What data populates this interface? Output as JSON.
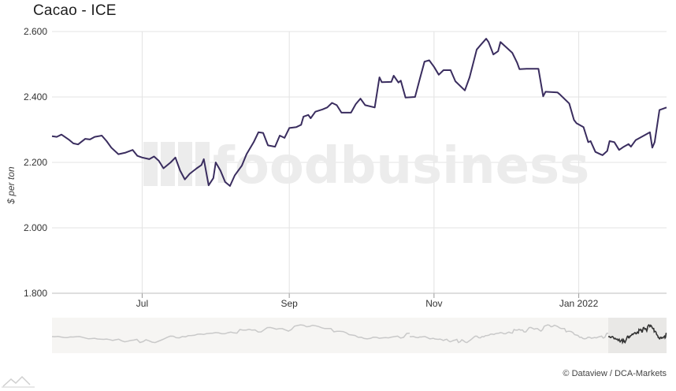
{
  "title": "Cacao - ICE",
  "credit": "© Dataview / DCA-Markets",
  "watermark": "foodbusiness",
  "colors": {
    "line": "#3a2d5f",
    "grid": "#e3e3e3",
    "navigator": "#c9c9c9",
    "navigator_sel": "#333333"
  },
  "chart_data": {
    "type": "line",
    "title": "Cacao - ICE",
    "ylabel": "$ per ton",
    "xlabel": "",
    "ylim": [
      1800,
      2600
    ],
    "yticks": [
      1800,
      2000,
      2200,
      2400,
      2600
    ],
    "ytick_labels": [
      "1.800",
      "2.000",
      "2.200",
      "2.400",
      "2.600"
    ],
    "xlim": [
      "2021-05-24",
      "2022-02-07"
    ],
    "xticks": [
      {
        "label": "Jul",
        "x": "2021-07-01"
      },
      {
        "label": "Sep",
        "x": "2021-09-01"
      },
      {
        "label": "Nov",
        "x": "2021-11-01"
      },
      {
        "label": "Jan 2022",
        "x": "2022-01-01"
      }
    ],
    "grid": true,
    "legend": "none",
    "series": [
      {
        "values": [
          [
            "2021-05-24",
            2280
          ],
          [
            "2021-05-26",
            2278
          ],
          [
            "2021-05-28",
            2285
          ],
          [
            "2021-05-31",
            2270
          ],
          [
            "2021-06-02",
            2258
          ],
          [
            "2021-06-04",
            2255
          ],
          [
            "2021-06-07",
            2272
          ],
          [
            "2021-06-09",
            2270
          ],
          [
            "2021-06-11",
            2278
          ],
          [
            "2021-06-14",
            2282
          ],
          [
            "2021-06-16",
            2265
          ],
          [
            "2021-06-18",
            2245
          ],
          [
            "2021-06-21",
            2225
          ],
          [
            "2021-06-24",
            2230
          ],
          [
            "2021-06-27",
            2238
          ],
          [
            "2021-06-29",
            2220
          ],
          [
            "2021-07-01",
            2215
          ],
          [
            "2021-07-04",
            2210
          ],
          [
            "2021-07-06",
            2218
          ],
          [
            "2021-07-08",
            2205
          ],
          [
            "2021-07-10",
            2182
          ],
          [
            "2021-07-13",
            2200
          ],
          [
            "2021-07-15",
            2215
          ],
          [
            "2021-07-17",
            2175
          ],
          [
            "2021-07-19",
            2148
          ],
          [
            "2021-07-21",
            2165
          ],
          [
            "2021-07-24",
            2182
          ],
          [
            "2021-07-26",
            2192
          ],
          [
            "2021-07-27",
            2210
          ],
          [
            "2021-07-29",
            2130
          ],
          [
            "2021-07-31",
            2152
          ],
          [
            "2021-08-01",
            2200
          ],
          [
            "2021-08-03",
            2175
          ],
          [
            "2021-08-05",
            2140
          ],
          [
            "2021-08-07",
            2128
          ],
          [
            "2021-08-09",
            2160
          ],
          [
            "2021-08-12",
            2190
          ],
          [
            "2021-08-14",
            2225
          ],
          [
            "2021-08-17",
            2262
          ],
          [
            "2021-08-19",
            2292
          ],
          [
            "2021-08-21",
            2290
          ],
          [
            "2021-08-23",
            2252
          ],
          [
            "2021-08-26",
            2248
          ],
          [
            "2021-08-28",
            2282
          ],
          [
            "2021-08-30",
            2275
          ],
          [
            "2021-09-01",
            2305
          ],
          [
            "2021-09-04",
            2308
          ],
          [
            "2021-09-06",
            2315
          ],
          [
            "2021-09-07",
            2340
          ],
          [
            "2021-09-09",
            2345
          ],
          [
            "2021-09-10",
            2335
          ],
          [
            "2021-09-12",
            2355
          ],
          [
            "2021-09-15",
            2362
          ],
          [
            "2021-09-17",
            2368
          ],
          [
            "2021-09-19",
            2382
          ],
          [
            "2021-09-21",
            2375
          ],
          [
            "2021-09-23",
            2352
          ],
          [
            "2021-09-27",
            2352
          ],
          [
            "2021-09-29",
            2378
          ],
          [
            "2021-10-01",
            2395
          ],
          [
            "2021-10-03",
            2375
          ],
          [
            "2021-10-07",
            2368
          ],
          [
            "2021-10-09",
            2460
          ],
          [
            "2021-10-10",
            2445
          ],
          [
            "2021-10-14",
            2446
          ],
          [
            "2021-10-15",
            2465
          ],
          [
            "2021-10-17",
            2444
          ],
          [
            "2021-10-18",
            2450
          ],
          [
            "2021-10-20",
            2398
          ],
          [
            "2021-10-24",
            2400
          ],
          [
            "2021-10-26",
            2455
          ],
          [
            "2021-10-28",
            2508
          ],
          [
            "2021-10-30",
            2512
          ],
          [
            "2021-11-01",
            2492
          ],
          [
            "2021-11-03",
            2468
          ],
          [
            "2021-11-05",
            2482
          ],
          [
            "2021-11-08",
            2482
          ],
          [
            "2021-11-10",
            2448
          ],
          [
            "2021-11-14",
            2420
          ],
          [
            "2021-11-16",
            2460
          ],
          [
            "2021-11-19",
            2545
          ],
          [
            "2021-11-21",
            2562
          ],
          [
            "2021-11-23",
            2578
          ],
          [
            "2021-11-24",
            2568
          ],
          [
            "2021-11-26",
            2530
          ],
          [
            "2021-11-28",
            2540
          ],
          [
            "2021-11-29",
            2568
          ],
          [
            "2021-12-01",
            2555
          ],
          [
            "2021-12-04",
            2535
          ],
          [
            "2021-12-06",
            2505
          ],
          [
            "2021-12-07",
            2485
          ],
          [
            "2021-12-10",
            2486
          ],
          [
            "2021-12-15",
            2486
          ],
          [
            "2021-12-17",
            2402
          ],
          [
            "2021-12-18",
            2416
          ],
          [
            "2021-12-23",
            2414
          ],
          [
            "2021-12-24",
            2408
          ],
          [
            "2021-12-28",
            2380
          ],
          [
            "2021-12-30",
            2330
          ],
          [
            "2021-12-31",
            2320
          ],
          [
            "2022-01-03",
            2308
          ],
          [
            "2022-01-05",
            2262
          ],
          [
            "2022-01-06",
            2265
          ],
          [
            "2022-01-08",
            2232
          ],
          [
            "2022-01-11",
            2222
          ],
          [
            "2022-01-13",
            2235
          ],
          [
            "2022-01-14",
            2265
          ],
          [
            "2022-01-16",
            2262
          ],
          [
            "2022-01-18",
            2238
          ],
          [
            "2022-01-20",
            2248
          ],
          [
            "2022-01-22",
            2256
          ],
          [
            "2022-01-23",
            2248
          ],
          [
            "2022-01-25",
            2268
          ],
          [
            "2022-01-28",
            2280
          ],
          [
            "2022-01-31",
            2292
          ],
          [
            "2022-02-01",
            2245
          ],
          [
            "2022-02-02",
            2262
          ],
          [
            "2022-02-04",
            2360
          ],
          [
            "2022-02-07",
            2368
          ]
        ]
      }
    ]
  }
}
